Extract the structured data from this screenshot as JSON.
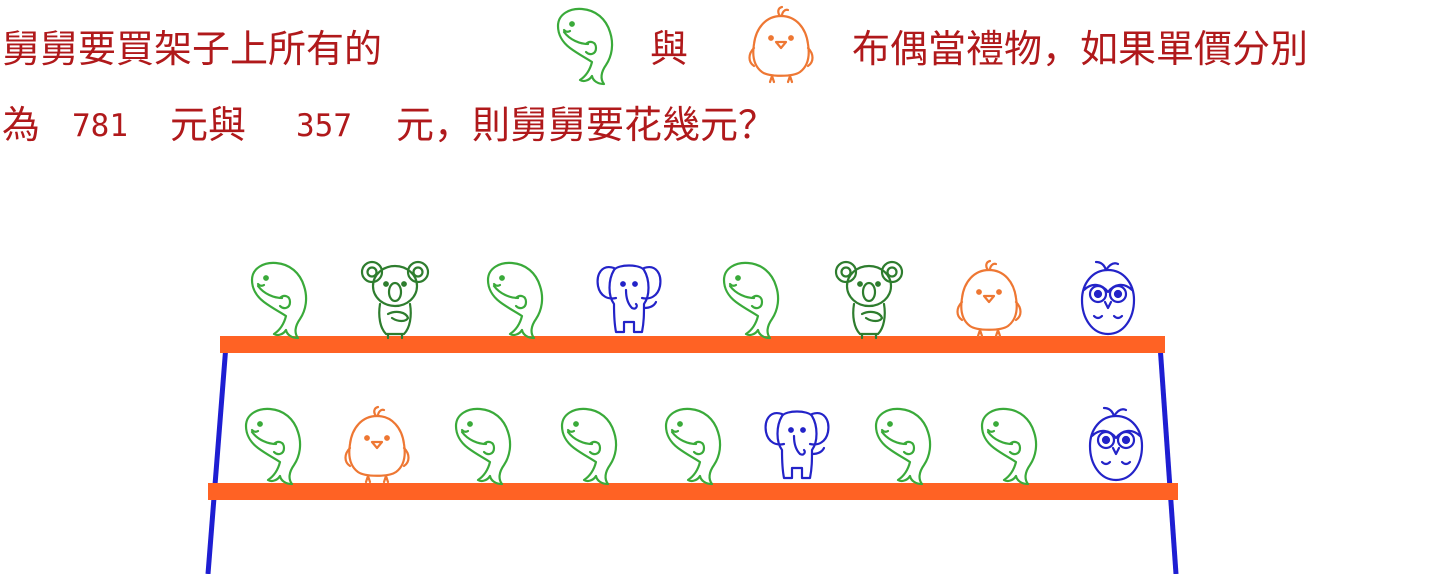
{
  "question": {
    "line1_part1": "舅舅要買架子上所有的",
    "icon_a": "whale",
    "connector": "與",
    "icon_b": "chick",
    "line1_part2": "布偶當禮物，如果單價分別",
    "line2_part1": "為",
    "price_a": "781",
    "unit_a": "元與",
    "price_b": "357",
    "line2_part2": "元，則舅舅要花幾元？"
  },
  "colors": {
    "question_text": "#b0191b",
    "shelf_board": "#ff6224",
    "shelf_post": "#1e1ed2",
    "whale": "#3aaa3a",
    "koala": "#2e7d2e",
    "elephant": "#2323c8",
    "chick": "#ee7733",
    "owl": "#2323c8"
  },
  "shelf": {
    "top_row": [
      "whale",
      "koala",
      "whale",
      "elephant",
      "whale",
      "koala",
      "chick",
      "owl"
    ],
    "bottom_row": [
      "whale",
      "chick",
      "whale",
      "whale",
      "whale",
      "elephant",
      "whale",
      "whale",
      "owl"
    ]
  }
}
